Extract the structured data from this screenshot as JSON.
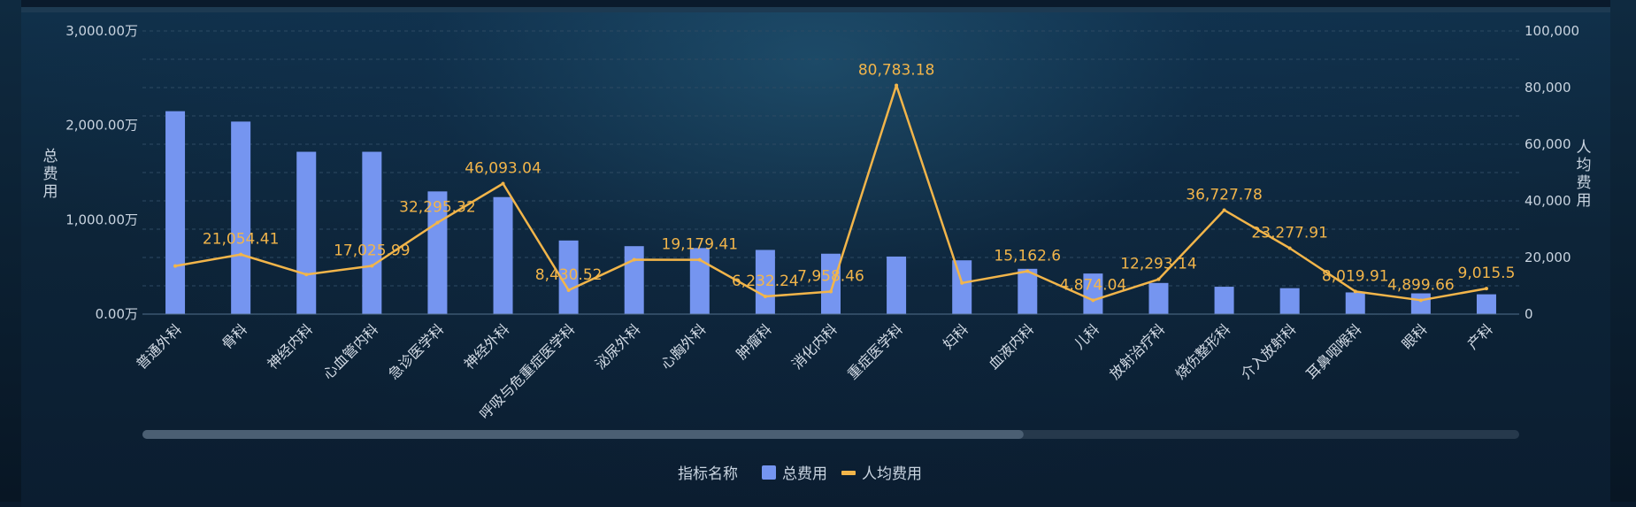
{
  "chart_data": {
    "type": "bar",
    "categories": [
      "普通外科",
      "骨科",
      "神经内科",
      "心血管内科",
      "急诊医学科",
      "神经外科",
      "呼吸与危重症医学科",
      "泌尿外科",
      "心胸外科",
      "肿瘤科",
      "消化内科",
      "重症医学科",
      "妇科",
      "血液内科",
      "儿科",
      "放射治疗科",
      "烧伤整形科",
      "介入放射科",
      "耳鼻咽喉科",
      "眼科",
      "产科"
    ],
    "series": [
      {
        "name": "总费用",
        "type": "bar",
        "axis": "left",
        "color": "#7595f0",
        "values": [
          2150,
          2040,
          1720,
          1720,
          1300,
          1240,
          780,
          720,
          700,
          680,
          640,
          610,
          570,
          480,
          430,
          330,
          290,
          275,
          230,
          220,
          210
        ]
      },
      {
        "name": "人均费用",
        "type": "line",
        "axis": "right",
        "color": "#f2b54a",
        "values": [
          17000,
          21054.41,
          14000,
          17025.99,
          32295.32,
          46093.04,
          8430.52,
          19200,
          19179.41,
          6232.24,
          7958.46,
          80783.18,
          11000,
          15162.6,
          4874.04,
          12293.14,
          36727.78,
          23277.91,
          8019.91,
          4899.66,
          9015.5
        ],
        "labels": [
          "",
          "21,054.41",
          "",
          "17,025.99",
          "32,295.32",
          "46,093.04",
          "8,430.52",
          "",
          "19,179.41",
          "6,232.24",
          "7,958.46",
          "80,783.18",
          "",
          "15,162.6",
          "4,874.04",
          "12,293.14",
          "36,727.78",
          "23,277.91",
          "8,019.91",
          "4,899.66",
          "9,015.5"
        ]
      }
    ],
    "y_left": {
      "label": "总费用",
      "ylim": [
        0,
        3000
      ],
      "ticks": [
        "0.00万",
        "1,000.00万",
        "2,000.00万",
        "3,000.00万"
      ]
    },
    "y_right": {
      "label": "人均费用",
      "ylim": [
        0,
        100000
      ],
      "ticks": [
        "0",
        "20,000",
        "40,000",
        "60,000",
        "80,000",
        "100,000"
      ]
    },
    "legend": {
      "title": "指标名称",
      "items": [
        "总费用",
        "人均费用"
      ],
      "position": "bottom-center"
    },
    "grid": true,
    "datazoom": {
      "start": 0,
      "end": 64
    }
  }
}
